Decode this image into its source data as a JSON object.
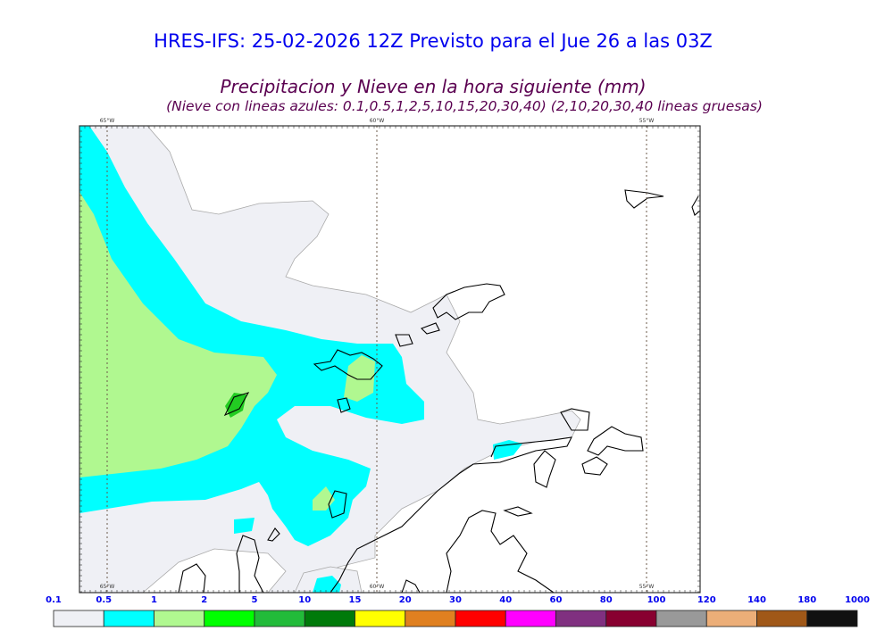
{
  "title": "HRES-IFS: 25-02-2026 12Z Previsto para el Jue 26 a las 03Z",
  "subtitle": "Precipitacion y Nieve en la hora siguiente (mm)",
  "subtitle2": "(Nieve con lineas azules: 0.1,0.5,1,2,5,10,15,20,30,40)  (2,10,20,30,40 lineas gruesas)",
  "longitudes": [
    "65°W",
    "60°W",
    "55°W"
  ],
  "colorbar": {
    "labels": [
      "0.1",
      "0.5",
      "1",
      "2",
      "5",
      "10",
      "15",
      "20",
      "30",
      "40",
      "60",
      "80",
      "100",
      "120",
      "140",
      "180",
      "1000"
    ],
    "colors": [
      "#eff0f5",
      "#00ffff",
      "#b0f890",
      "#00ff00",
      "#22bb3a",
      "#007a0a",
      "#ffff00",
      "#e08020",
      "#ff0000",
      "#ff00ff",
      "#803080",
      "#880030",
      "#999999",
      "#ecae78",
      "#a05818",
      "#111111"
    ]
  },
  "map_colors": {
    "trace": "#eff0f5",
    "light": "#00ffff",
    "moderate": "#b0f890",
    "heavy": "#22cc22"
  }
}
